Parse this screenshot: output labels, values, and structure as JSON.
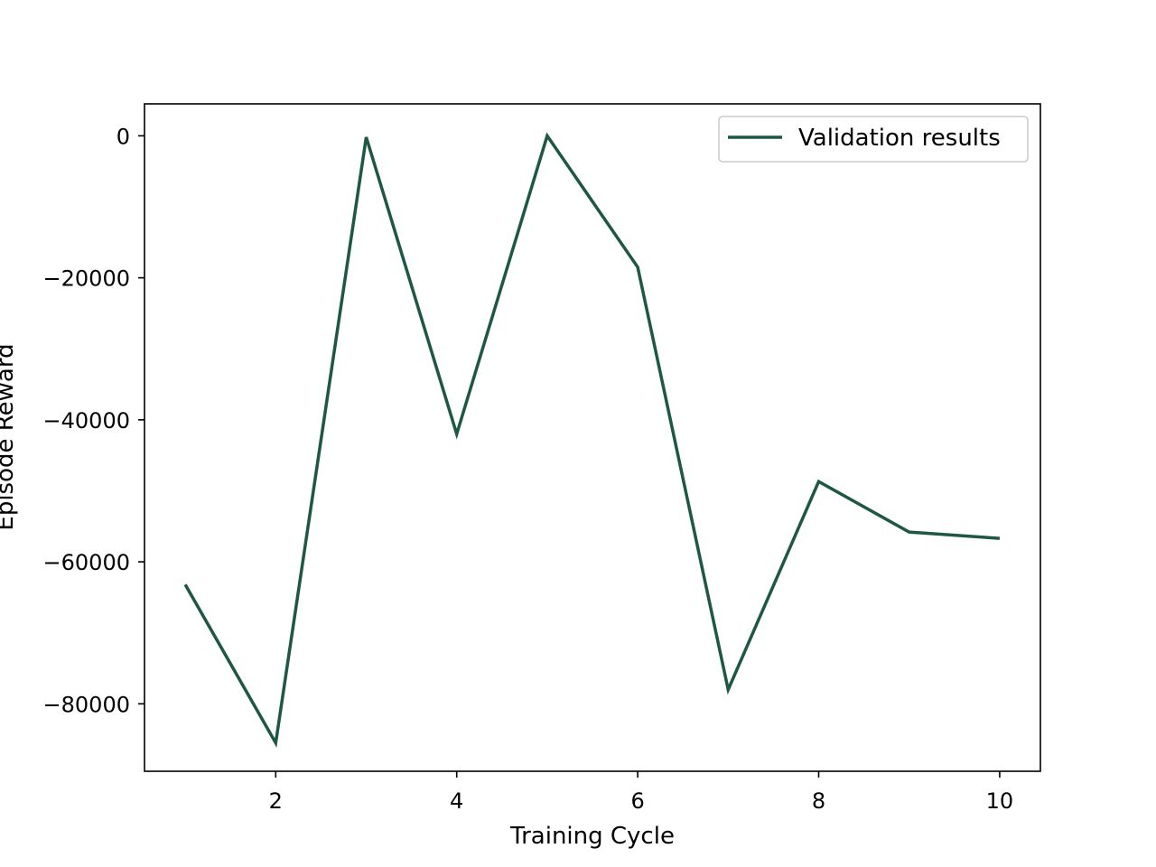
{
  "chart_data": {
    "type": "line",
    "title": "",
    "xlabel": "Training Cycle",
    "ylabel": "Episode Reward",
    "xlim": [
      0.55,
      10.45
    ],
    "ylim": [
      -89500,
      4500
    ],
    "xticks": [
      2,
      4,
      6,
      8,
      10
    ],
    "xtick_labels": [
      "2",
      "4",
      "6",
      "8",
      "10"
    ],
    "yticks": [
      0,
      -20000,
      -40000,
      -60000,
      -80000
    ],
    "ytick_labels": [
      "0",
      "−20000",
      "−40000",
      "−60000",
      "−80000"
    ],
    "grid": false,
    "legend_position": "top-right",
    "series": [
      {
        "name": "Validation results",
        "color": "#1e5743",
        "x": [
          1,
          2,
          3,
          4,
          5,
          6,
          7,
          8,
          9,
          10
        ],
        "y": [
          -63200,
          -85500,
          -200,
          -42000,
          0,
          -18500,
          -78000,
          -48700,
          -55800,
          -56700
        ]
      }
    ]
  }
}
